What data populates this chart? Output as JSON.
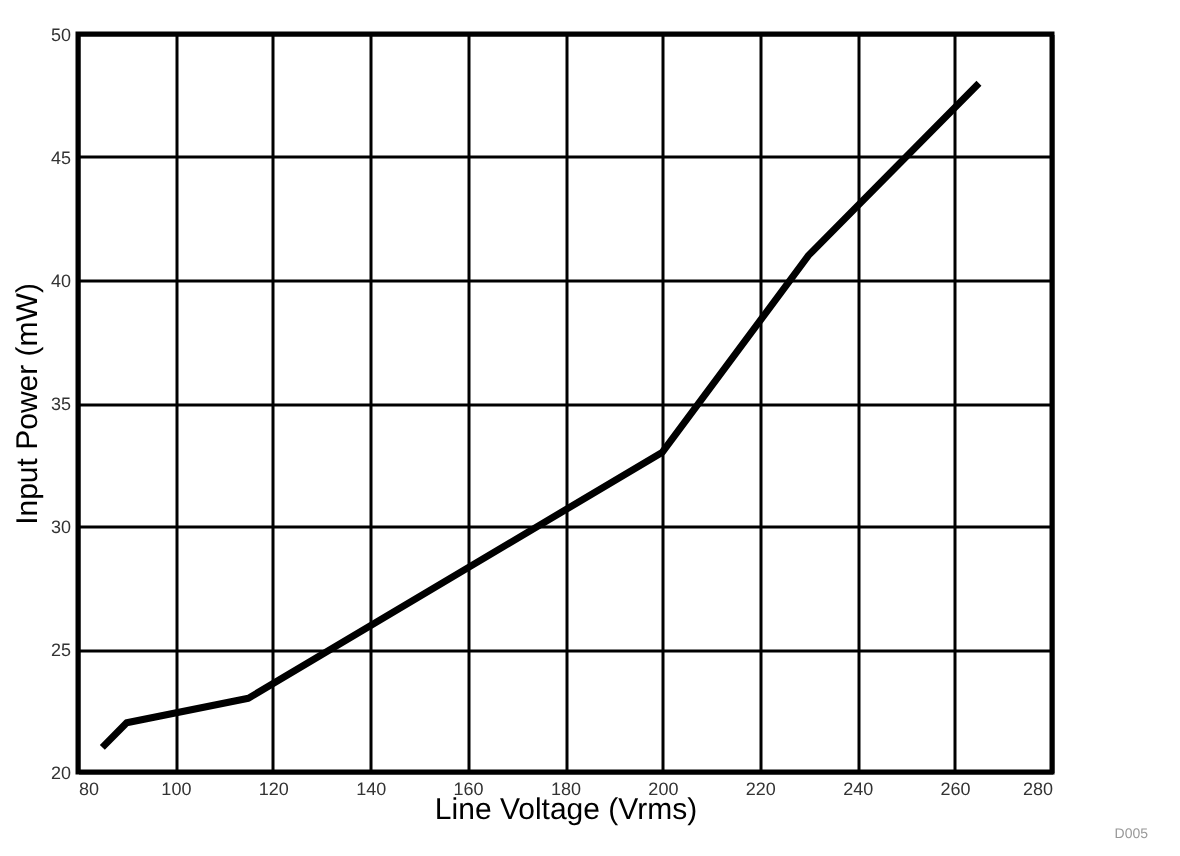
{
  "chart_data": {
    "type": "line",
    "xlabel": "Line Voltage (Vrms)",
    "ylabel": "Input Power (mW)",
    "x": [
      85,
      90,
      115,
      200,
      230,
      265
    ],
    "series": [
      {
        "color": "#000000",
        "values": [
          21,
          22,
          23,
          33,
          41,
          48
        ]
      }
    ],
    "xlim": [
      80,
      280
    ],
    "xticks": [
      80,
      100,
      120,
      140,
      160,
      180,
      200,
      220,
      240,
      260,
      280
    ],
    "ylim": [
      20,
      50
    ],
    "yticks": [
      20,
      25,
      30,
      35,
      40,
      45,
      50
    ],
    "grid": true,
    "marker": "none",
    "line_style": "solid",
    "legend": false,
    "annotations": [
      "D005"
    ]
  }
}
